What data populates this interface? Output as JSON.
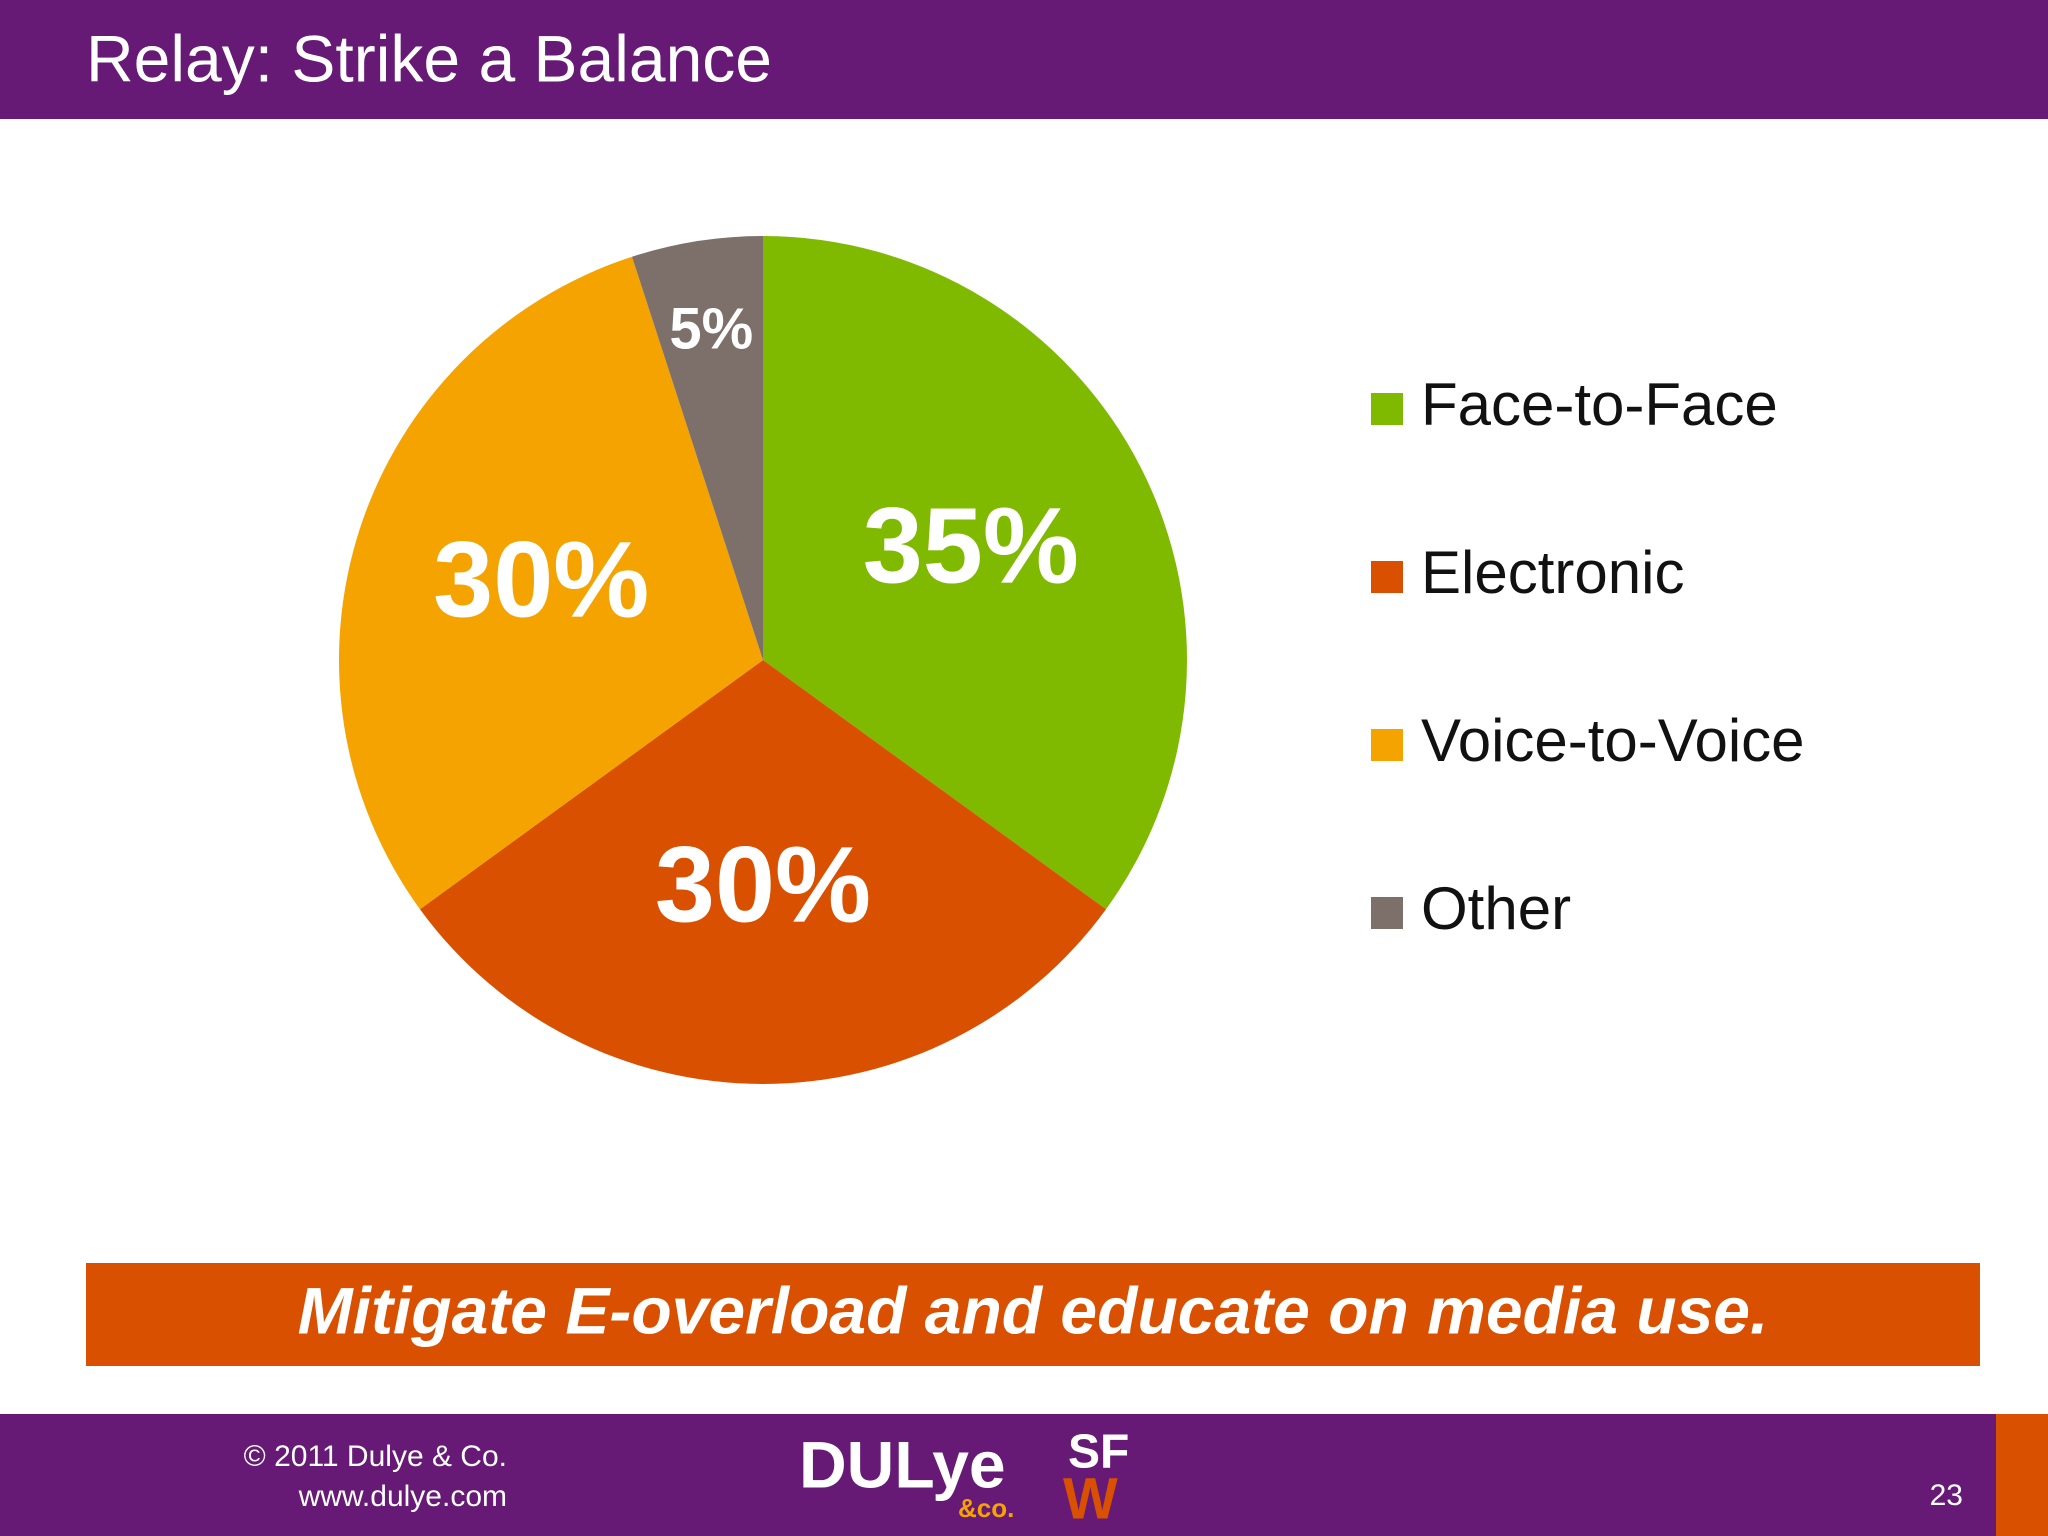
{
  "header": {
    "title": "Relay: Strike a Balance"
  },
  "chart_data": {
    "type": "pie",
    "categories": [
      "Face-to-Face",
      "Electronic",
      "Voice-to-Voice",
      "Other"
    ],
    "values": [
      35,
      30,
      30,
      5
    ],
    "value_labels": [
      "35%",
      "30%",
      "30%",
      "5%"
    ],
    "colors": [
      "#7fba00",
      "#d95000",
      "#f5a300",
      "#7d6f6a"
    ],
    "legend": "right"
  },
  "banner": {
    "text": "Mitigate E-overload and educate on media use."
  },
  "footer": {
    "copyright": "© 2011 Dulye & Co.",
    "url": "www.dulye.com",
    "logo": "DULye",
    "logo_sub": "&co.",
    "logo2_top": "SF",
    "logo2_bottom": "W",
    "page": "23"
  }
}
